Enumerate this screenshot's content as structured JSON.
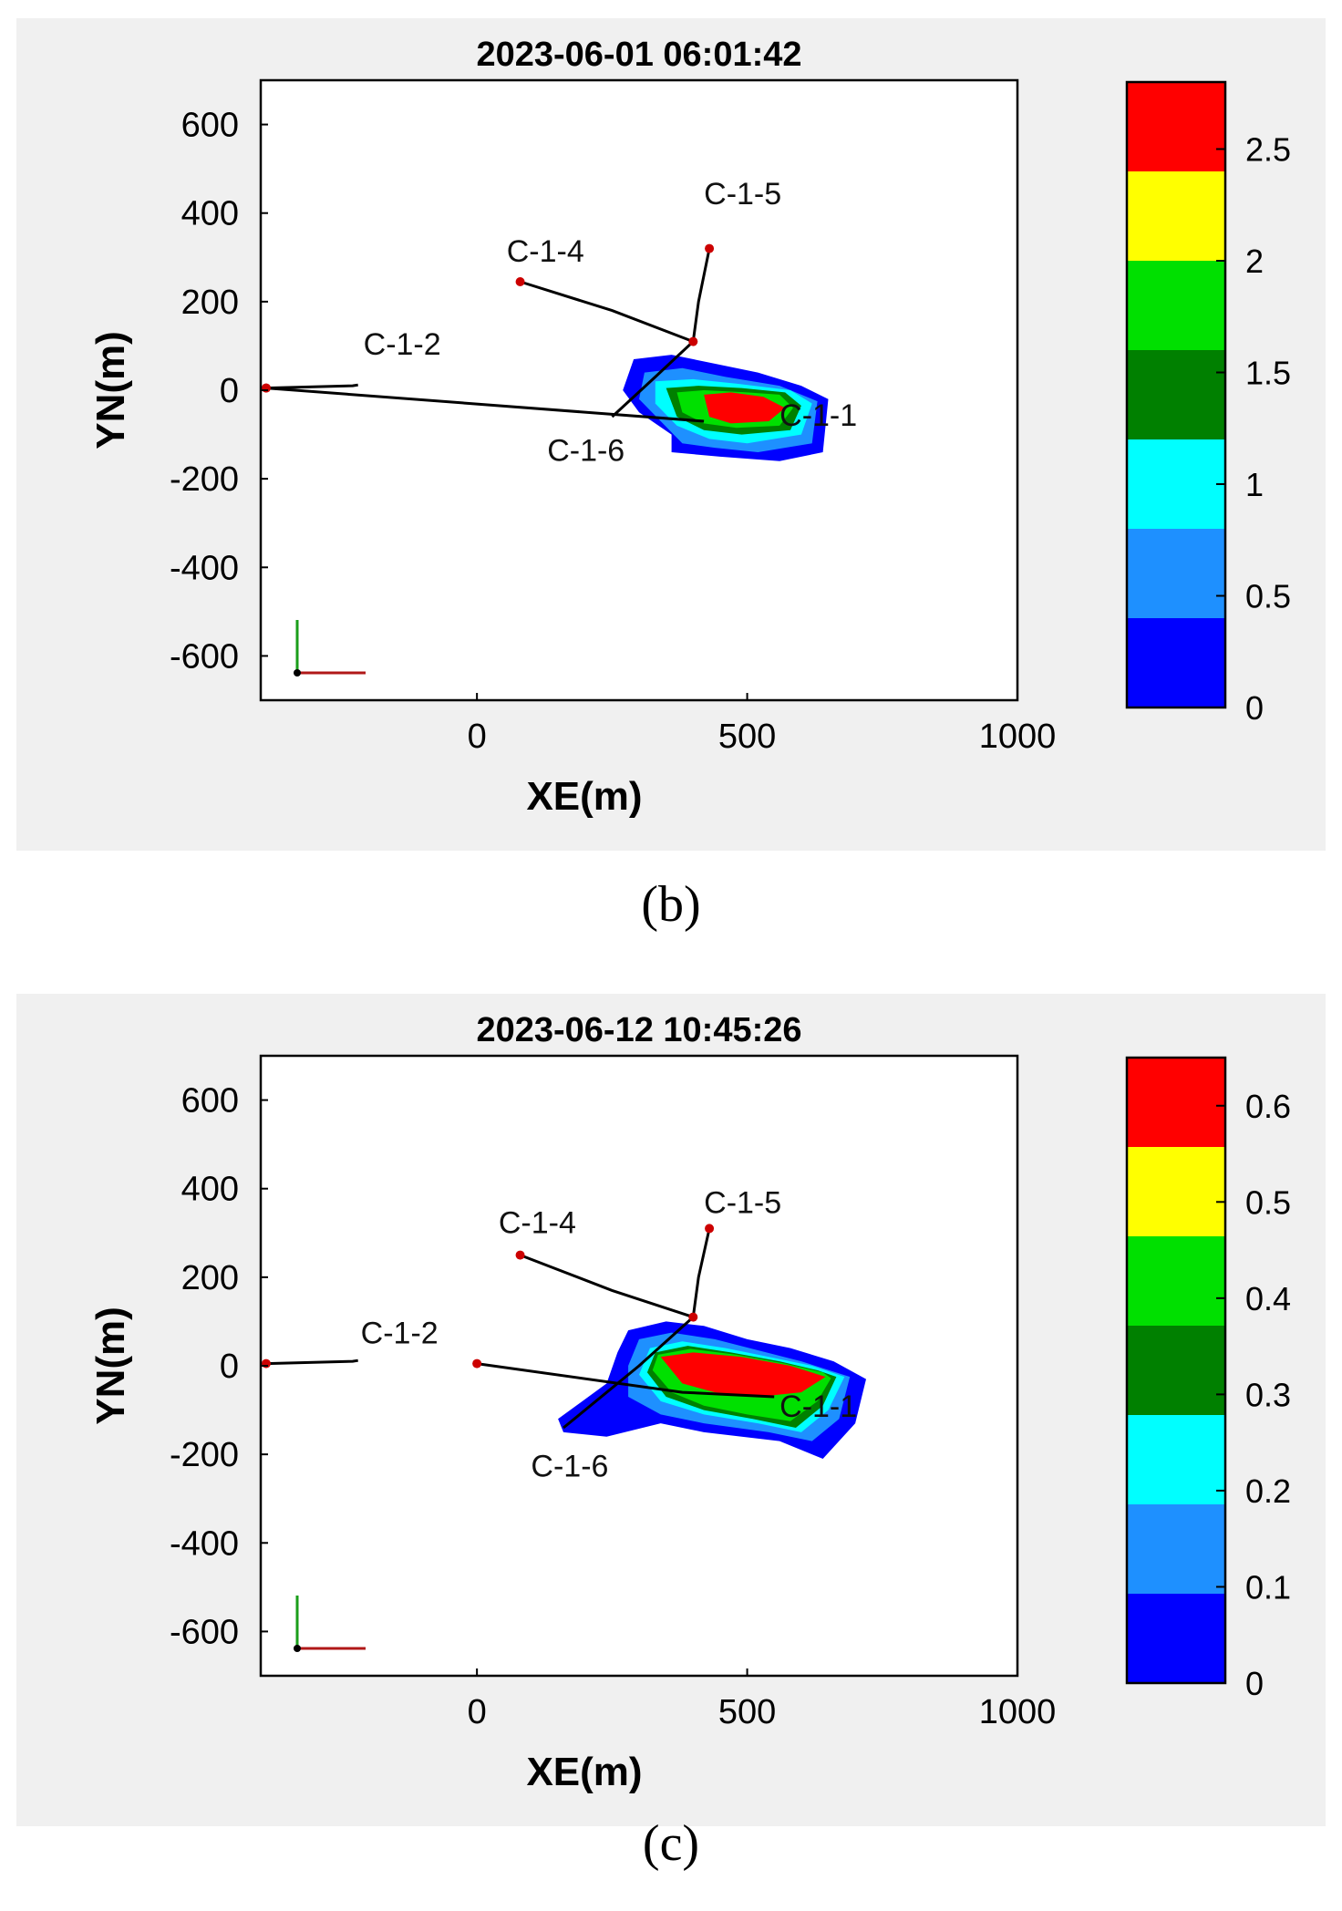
{
  "chart_data": [
    {
      "type": "heatmap",
      "panel_label": "(b)",
      "title": "2023-06-01 06:01:42",
      "xlabel": "XE(m)",
      "ylabel": "YN(m)",
      "xlim": [
        -400,
        1000
      ],
      "ylim": [
        -700,
        700
      ],
      "xticks": [
        0,
        500,
        1000
      ],
      "yticks": [
        600,
        400,
        200,
        0,
        -200,
        -400,
        -600
      ],
      "grid": false,
      "colorbar": {
        "ticks": [
          0,
          0.5,
          1,
          1.5,
          2,
          2.5
        ],
        "tick_labels": [
          "0",
          "0.5",
          "1",
          "1.5",
          "2",
          "2.5"
        ],
        "levels": [
          0,
          0.25,
          0.5,
          0.75,
          1.0,
          1.25,
          1.5,
          1.75,
          2.0,
          2.25,
          2.5,
          2.75
        ],
        "colors": [
          "#0000ff",
          "#1e90ff",
          "#00ffff",
          "#008000",
          "#00e000",
          "#ffff00",
          "#ff0000"
        ],
        "max": 2.8
      },
      "wells": [
        {
          "name": "C-1-1",
          "path": [
            [
              -390,
              5
            ],
            [
              420,
              -70
            ]
          ],
          "label_at": [
            560,
            -80
          ]
        },
        {
          "name": "C-1-2",
          "path": [
            [
              -390,
              5
            ],
            [
              -230,
              10
            ],
            [
              -220,
              12
            ]
          ],
          "label_at": [
            -210,
            80
          ]
        },
        {
          "name": "C-1-4",
          "path": [
            [
              80,
              245
            ],
            [
              250,
              180
            ],
            [
              400,
              110
            ]
          ],
          "label_at": [
            55,
            290
          ]
        },
        {
          "name": "C-1-5",
          "path": [
            [
              430,
              320
            ],
            [
              410,
              200
            ],
            [
              400,
              110
            ]
          ],
          "label_at": [
            420,
            420
          ]
        },
        {
          "name": "C-1-6",
          "path": [
            [
              400,
              110
            ],
            [
              330,
              30
            ],
            [
              250,
              -60
            ]
          ],
          "label_at": [
            130,
            -160
          ]
        }
      ],
      "contour_levels": [
        {
          "level": 0.1,
          "color": "#0000ff",
          "polygon": [
            [
              290,
              70
            ],
            [
              360,
              80
            ],
            [
              440,
              60
            ],
            [
              520,
              40
            ],
            [
              600,
              10
            ],
            [
              650,
              -20
            ],
            [
              640,
              -140
            ],
            [
              560,
              -160
            ],
            [
              450,
              -150
            ],
            [
              360,
              -140
            ],
            [
              360,
              -100
            ],
            [
              300,
              -50
            ],
            [
              270,
              0
            ]
          ]
        },
        {
          "level": 0.4,
          "color": "#1e90ff",
          "polygon": [
            [
              310,
              40
            ],
            [
              380,
              50
            ],
            [
              460,
              30
            ],
            [
              560,
              10
            ],
            [
              630,
              -25
            ],
            [
              620,
              -120
            ],
            [
              520,
              -140
            ],
            [
              440,
              -130
            ],
            [
              380,
              -120
            ],
            [
              340,
              -70
            ],
            [
              300,
              -20
            ]
          ]
        },
        {
          "level": 0.9,
          "color": "#00ffff",
          "polygon": [
            [
              330,
              20
            ],
            [
              400,
              25
            ],
            [
              480,
              15
            ],
            [
              580,
              0
            ],
            [
              620,
              -30
            ],
            [
              600,
              -100
            ],
            [
              500,
              -120
            ],
            [
              430,
              -110
            ],
            [
              370,
              -80
            ],
            [
              330,
              -30
            ]
          ]
        },
        {
          "level": 1.4,
          "color": "#008000",
          "polygon": [
            [
              350,
              5
            ],
            [
              410,
              10
            ],
            [
              490,
              5
            ],
            [
              570,
              -5
            ],
            [
              600,
              -35
            ],
            [
              580,
              -90
            ],
            [
              490,
              -100
            ],
            [
              420,
              -90
            ],
            [
              370,
              -60
            ]
          ]
        },
        {
          "level": 1.9,
          "color": "#00e000",
          "polygon": [
            [
              370,
              -5
            ],
            [
              420,
              0
            ],
            [
              500,
              -5
            ],
            [
              560,
              -10
            ],
            [
              585,
              -40
            ],
            [
              560,
              -80
            ],
            [
              480,
              -85
            ],
            [
              420,
              -75
            ],
            [
              380,
              -50
            ]
          ]
        },
        {
          "level": 2.5,
          "color": "#ff0000",
          "polygon": [
            [
              420,
              -10
            ],
            [
              470,
              -5
            ],
            [
              530,
              -15
            ],
            [
              570,
              -40
            ],
            [
              540,
              -70
            ],
            [
              470,
              -75
            ],
            [
              430,
              -60
            ]
          ]
        }
      ]
    },
    {
      "type": "heatmap",
      "panel_label": "(c)",
      "title": "2023-06-12 10:45:26",
      "xlabel": "XE(m)",
      "ylabel": "YN(m)",
      "xlim": [
        -400,
        1000
      ],
      "ylim": [
        -700,
        700
      ],
      "xticks": [
        0,
        500,
        1000
      ],
      "yticks": [
        600,
        400,
        200,
        0,
        -200,
        -400,
        -600
      ],
      "grid": false,
      "colorbar": {
        "ticks": [
          0,
          0.1,
          0.2,
          0.3,
          0.4,
          0.5,
          0.6
        ],
        "tick_labels": [
          "0",
          "0.1",
          "0.2",
          "0.3",
          "0.4",
          "0.5",
          "0.6"
        ],
        "levels": [
          0,
          0.05,
          0.1,
          0.15,
          0.2,
          0.25,
          0.3,
          0.35,
          0.4,
          0.45,
          0.5,
          0.55,
          0.6,
          0.65
        ],
        "colors": [
          "#0000ff",
          "#1e90ff",
          "#00ffff",
          "#008000",
          "#00e000",
          "#ffff00",
          "#ff0000"
        ],
        "max": 0.65
      },
      "wells": [
        {
          "name": "C-1-1",
          "path": [
            [
              0,
              5
            ],
            [
              380,
              -60
            ],
            [
              550,
              -70
            ]
          ],
          "label_at": [
            560,
            -115
          ]
        },
        {
          "name": "C-1-2",
          "path": [
            [
              -390,
              5
            ],
            [
              -230,
              10
            ],
            [
              -220,
              12
            ]
          ],
          "label_at": [
            -215,
            50
          ]
        },
        {
          "name": "C-1-4",
          "path": [
            [
              80,
              250
            ],
            [
              250,
              170
            ],
            [
              400,
              110
            ]
          ],
          "label_at": [
            40,
            300
          ]
        },
        {
          "name": "C-1-5",
          "path": [
            [
              430,
              310
            ],
            [
              410,
              200
            ],
            [
              400,
              110
            ]
          ],
          "label_at": [
            420,
            345
          ]
        },
        {
          "name": "C-1-6",
          "path": [
            [
              400,
              110
            ],
            [
              300,
              0
            ],
            [
              160,
              -140
            ]
          ],
          "label_at": [
            100,
            -250
          ]
        }
      ],
      "contour_levels": [
        {
          "level": 0.03,
          "color": "#0000ff",
          "polygon": [
            [
              280,
              80
            ],
            [
              350,
              100
            ],
            [
              420,
              90
            ],
            [
              500,
              60
            ],
            [
              580,
              40
            ],
            [
              660,
              10
            ],
            [
              720,
              -30
            ],
            [
              700,
              -130
            ],
            [
              640,
              -210
            ],
            [
              560,
              -170
            ],
            [
              420,
              -150
            ],
            [
              340,
              -130
            ],
            [
              240,
              -160
            ],
            [
              160,
              -150
            ],
            [
              150,
              -120
            ],
            [
              240,
              -40
            ],
            [
              260,
              30
            ]
          ]
        },
        {
          "level": 0.12,
          "color": "#1e90ff",
          "polygon": [
            [
              300,
              60
            ],
            [
              360,
              75
            ],
            [
              440,
              60
            ],
            [
              520,
              35
            ],
            [
              600,
              10
            ],
            [
              690,
              -25
            ],
            [
              670,
              -120
            ],
            [
              620,
              -170
            ],
            [
              540,
              -150
            ],
            [
              420,
              -130
            ],
            [
              340,
              -110
            ],
            [
              280,
              -70
            ],
            [
              280,
              0
            ]
          ]
        },
        {
          "level": 0.22,
          "color": "#00ffff",
          "polygon": [
            [
              320,
              40
            ],
            [
              380,
              55
            ],
            [
              460,
              40
            ],
            [
              540,
              20
            ],
            [
              620,
              0
            ],
            [
              680,
              -25
            ],
            [
              650,
              -100
            ],
            [
              600,
              -150
            ],
            [
              520,
              -130
            ],
            [
              420,
              -110
            ],
            [
              340,
              -80
            ],
            [
              300,
              -20
            ]
          ]
        },
        {
          "level": 0.32,
          "color": "#008000",
          "polygon": [
            [
              330,
              30
            ],
            [
              390,
              45
            ],
            [
              470,
              30
            ],
            [
              560,
              10
            ],
            [
              630,
              -10
            ],
            [
              665,
              -25
            ],
            [
              640,
              -90
            ],
            [
              590,
              -140
            ],
            [
              510,
              -120
            ],
            [
              420,
              -100
            ],
            [
              350,
              -70
            ],
            [
              315,
              -15
            ]
          ]
        },
        {
          "level": 0.42,
          "color": "#00e000",
          "polygon": [
            [
              335,
              25
            ],
            [
              395,
              38
            ],
            [
              480,
              25
            ],
            [
              570,
              5
            ],
            [
              640,
              -15
            ],
            [
              655,
              -28
            ],
            [
              630,
              -80
            ],
            [
              580,
              -125
            ],
            [
              500,
              -110
            ],
            [
              420,
              -90
            ],
            [
              360,
              -60
            ],
            [
              325,
              -10
            ]
          ]
        },
        {
          "level": 0.58,
          "color": "#ff0000",
          "polygon": [
            [
              340,
              20
            ],
            [
              400,
              30
            ],
            [
              490,
              20
            ],
            [
              580,
              0
            ],
            [
              645,
              -25
            ],
            [
              600,
              -60
            ],
            [
              520,
              -70
            ],
            [
              440,
              -60
            ],
            [
              380,
              -40
            ]
          ]
        }
      ]
    }
  ]
}
